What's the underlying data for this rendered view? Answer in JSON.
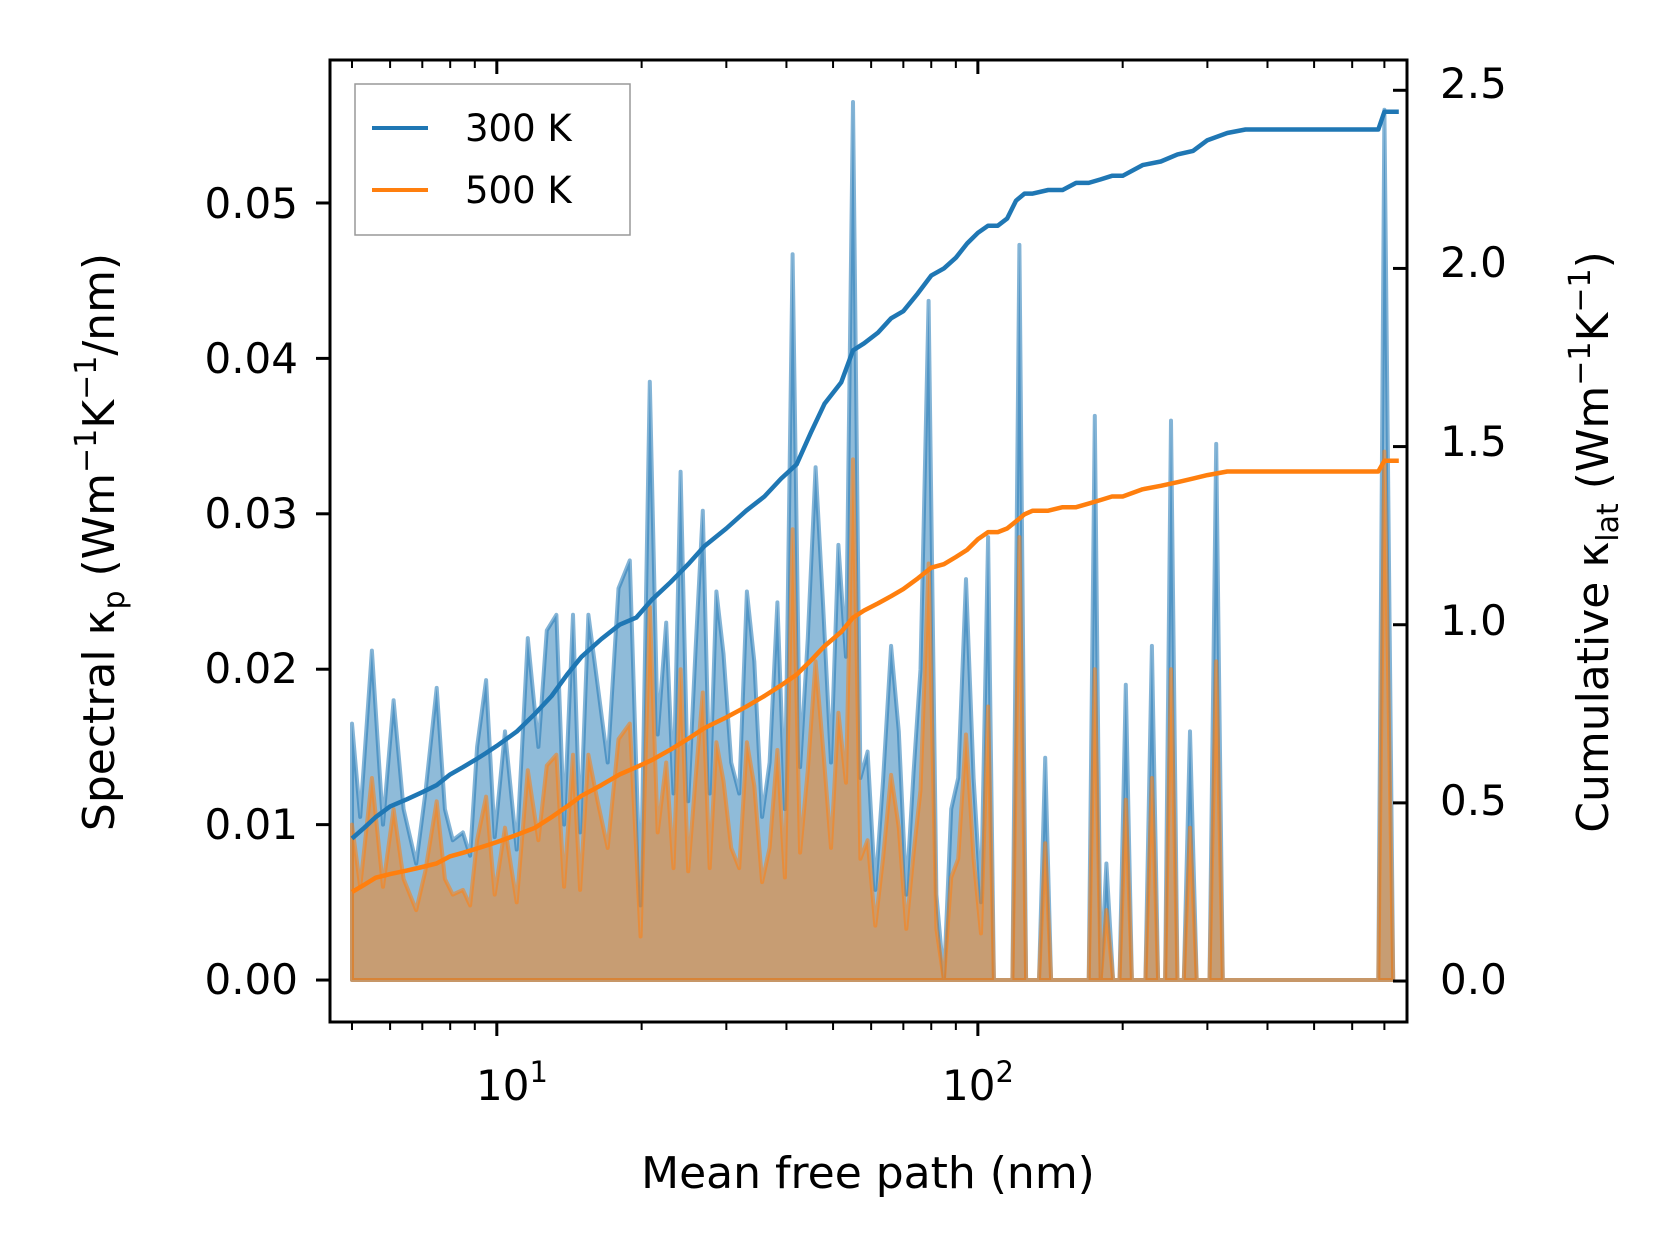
{
  "chart_data": {
    "type": "line",
    "x_scale": "log",
    "xlim": [
      4.5,
      780
    ],
    "ylim_left": [
      -0.0027,
      0.0592
    ],
    "ylim_right": [
      -0.115,
      2.585
    ],
    "xlabel": "Mean free path (nm)",
    "ylabel_left": {
      "main": "Spectral κ",
      "sub": "p",
      "unit_open": " (Wm",
      "exp1": "−1",
      "mid": "K",
      "exp2": "−1",
      "unit_close": "/nm)"
    },
    "ylabel_right": {
      "main": "Cumulative κ",
      "sub": "lat",
      "unit_open": " (Wm",
      "exp1": "−1",
      "mid": "K",
      "exp2": "−1",
      "unit_close": ")"
    },
    "x_ticks": [
      {
        "value": 10,
        "base": "10",
        "exp": "1"
      },
      {
        "value": 100,
        "base": "10",
        "exp": "2"
      }
    ],
    "y_ticks_left": [
      "0.00",
      "0.01",
      "0.02",
      "0.03",
      "0.04",
      "0.05"
    ],
    "y_ticks_right": [
      "0.0",
      "0.5",
      "1.0",
      "1.5",
      "2.0",
      "2.5"
    ],
    "legend": {
      "position": "top-left",
      "entries": [
        "300 K",
        "500 K"
      ]
    },
    "colors": {
      "s300": "#1f77b4",
      "s500": "#ff7f0e"
    },
    "series": [
      {
        "name": "300 K",
        "spectral": {
          "x": [
            5,
            5.2,
            5.5,
            5.8,
            6.1,
            6.4,
            6.8,
            7.1,
            7.5,
            7.8,
            8.1,
            8.5,
            8.8,
            9.1,
            9.5,
            9.9,
            10.4,
            11.0,
            11.6,
            12.2,
            12.7,
            13.3,
            13.8,
            14.4,
            14.9,
            15.5,
            16.2,
            17.0,
            17.9,
            18.9,
            19.9,
            20.8,
            21.6,
            22.5,
            23.3,
            24.1,
            25.0,
            25.9,
            26.8,
            27.7,
            28.6,
            29.6,
            30.7,
            31.9,
            33.1,
            34.3,
            35.6,
            36.9,
            38.3,
            39.7,
            41.2,
            42.7,
            44.3,
            46.0,
            47.7,
            49.5,
            51.3,
            53.2,
            55.0,
            57.0,
            59.0,
            61.2,
            63.5,
            66.0,
            68.5,
            71.0,
            73.5,
            76.0,
            79.0,
            82.0,
            85.0,
            88.0,
            91.0,
            94.5,
            98.0,
            101.5,
            105.0,
            108.0,
            111.0,
            114.0,
            118.0,
            122.0,
            126.0,
            130.0,
            134.0,
            138.0,
            142.0,
            146.0,
            150.0,
            155.0,
            160.0,
            165.0,
            170.0,
            175.0,
            180.0,
            185.0,
            191.0,
            197.0,
            203.0,
            209.0,
            216.0,
            223.0,
            230.0,
            237.0,
            245.0,
            252.0,
            260.0,
            268.0,
            276.0,
            285.0,
            294.0,
            303.0,
            313.0,
            323.0,
            333.0,
            400.0,
            500.0,
            600.0,
            680.0,
            700.0,
            730.0
          ],
          "values": [
            0.0165,
            0.0105,
            0.0212,
            0.01,
            0.018,
            0.011,
            0.0075,
            0.012,
            0.0188,
            0.011,
            0.009,
            0.0095,
            0.008,
            0.015,
            0.0193,
            0.0092,
            0.016,
            0.0084,
            0.022,
            0.015,
            0.0225,
            0.0235,
            0.01,
            0.0235,
            0.0095,
            0.0235,
            0.019,
            0.014,
            0.0252,
            0.027,
            0.0048,
            0.0385,
            0.0158,
            0.023,
            0.012,
            0.0327,
            0.0115,
            0.0213,
            0.0302,
            0.012,
            0.025,
            0.021,
            0.014,
            0.012,
            0.025,
            0.0205,
            0.0105,
            0.014,
            0.0243,
            0.011,
            0.0467,
            0.0137,
            0.022,
            0.033,
            0.024,
            0.014,
            0.028,
            0.0208,
            0.0565,
            0.013,
            0.0147,
            0.0058,
            0.0128,
            0.0215,
            0.016,
            0.0055,
            0.0133,
            0.02,
            0.0437,
            0.0055,
            0.0,
            0.011,
            0.013,
            0.0258,
            0.013,
            0.005,
            0.0285,
            0.0,
            0.0,
            0.0,
            0.0,
            0.0473,
            0.0,
            0.0,
            0.0,
            0.0143,
            0.0,
            0.0,
            0.0,
            0.0,
            0.0,
            0.0,
            0.0,
            0.0363,
            0.0,
            0.0075,
            0.0,
            0.0,
            0.019,
            0.0,
            0.0,
            0.0,
            0.0215,
            0.0,
            0.0,
            0.036,
            0.0,
            0.0,
            0.016,
            0.0,
            0.0,
            0.0,
            0.0345,
            0.0,
            0.0,
            0.0,
            0.0,
            0.0,
            0.0,
            0.056,
            0.0
          ]
        },
        "cumulative": {
          "x": [
            5,
            5.3,
            5.6,
            6.0,
            6.5,
            7.0,
            7.5,
            8.0,
            8.5,
            9.0,
            9.5,
            10.0,
            11.0,
            12.0,
            13.0,
            14.0,
            15.0,
            16.5,
            18.0,
            19.5,
            21.0,
            23.0,
            25.0,
            27.0,
            30.0,
            33.0,
            36.0,
            39.0,
            42.0,
            45.0,
            48.0,
            52.0,
            55.0,
            58.0,
            62.0,
            66.0,
            70.0,
            75.0,
            80.0,
            85.0,
            90.0,
            95.0,
            100.0,
            105.0,
            110.0,
            115.0,
            120.0,
            125.0,
            130.0,
            140.0,
            150.0,
            160.0,
            170.0,
            180.0,
            190.0,
            200.0,
            220.0,
            240.0,
            260.0,
            280.0,
            300.0,
            330.0,
            360.0,
            500.0,
            680.0,
            700.0,
            720.0,
            750.0
          ],
          "values": [
            0.4,
            0.43,
            0.46,
            0.49,
            0.51,
            0.53,
            0.55,
            0.58,
            0.6,
            0.62,
            0.64,
            0.66,
            0.7,
            0.75,
            0.8,
            0.86,
            0.91,
            0.96,
            1.0,
            1.02,
            1.07,
            1.12,
            1.17,
            1.22,
            1.27,
            1.32,
            1.36,
            1.41,
            1.45,
            1.54,
            1.62,
            1.68,
            1.77,
            1.79,
            1.82,
            1.86,
            1.88,
            1.93,
            1.98,
            2.0,
            2.03,
            2.07,
            2.1,
            2.12,
            2.12,
            2.14,
            2.19,
            2.21,
            2.21,
            2.22,
            2.22,
            2.24,
            2.24,
            2.25,
            2.26,
            2.26,
            2.29,
            2.3,
            2.32,
            2.33,
            2.36,
            2.38,
            2.39,
            2.39,
            2.39,
            2.44,
            2.44,
            2.44
          ]
        }
      },
      {
        "name": "500 K",
        "spectral": {
          "x": [
            5,
            5.2,
            5.5,
            5.8,
            6.1,
            6.4,
            6.8,
            7.1,
            7.5,
            7.8,
            8.1,
            8.5,
            8.8,
            9.1,
            9.5,
            9.9,
            10.4,
            11.0,
            11.6,
            12.2,
            12.7,
            13.3,
            13.8,
            14.4,
            14.9,
            15.5,
            16.2,
            17.0,
            17.9,
            18.9,
            19.9,
            20.8,
            21.6,
            22.5,
            23.3,
            24.1,
            25.0,
            25.9,
            26.8,
            27.7,
            28.6,
            29.6,
            30.7,
            31.9,
            33.1,
            34.3,
            35.6,
            36.9,
            38.3,
            39.7,
            41.2,
            42.7,
            44.3,
            46.0,
            47.7,
            49.5,
            51.3,
            53.2,
            55.0,
            57.0,
            59.0,
            61.2,
            63.5,
            66.0,
            68.5,
            71.0,
            73.5,
            76.0,
            79.0,
            82.0,
            85.0,
            88.0,
            91.0,
            94.5,
            98.0,
            101.5,
            105.0,
            108.0,
            111.0,
            114.0,
            118.0,
            122.0,
            126.0,
            130.0,
            134.0,
            138.0,
            142.0,
            146.0,
            150.0,
            155.0,
            160.0,
            165.0,
            170.0,
            175.0,
            180.0,
            185.0,
            191.0,
            197.0,
            203.0,
            209.0,
            216.0,
            223.0,
            230.0,
            237.0,
            245.0,
            252.0,
            260.0,
            268.0,
            276.0,
            285.0,
            294.0,
            303.0,
            313.0,
            323.0,
            333.0,
            400.0,
            500.0,
            600.0,
            680.0,
            700.0,
            730.0
          ],
          "values": [
            0.01,
            0.006,
            0.013,
            0.006,
            0.011,
            0.0065,
            0.0045,
            0.007,
            0.0115,
            0.0065,
            0.0055,
            0.0058,
            0.0048,
            0.009,
            0.0118,
            0.0055,
            0.0098,
            0.005,
            0.0135,
            0.009,
            0.0138,
            0.0145,
            0.006,
            0.0145,
            0.0058,
            0.0145,
            0.0115,
            0.0085,
            0.0155,
            0.0165,
            0.0028,
            0.024,
            0.0095,
            0.014,
            0.0072,
            0.02,
            0.007,
            0.013,
            0.0185,
            0.0072,
            0.0153,
            0.0128,
            0.0085,
            0.0072,
            0.0153,
            0.0125,
            0.0063,
            0.0085,
            0.0148,
            0.0066,
            0.029,
            0.0082,
            0.0135,
            0.0205,
            0.0148,
            0.0085,
            0.0172,
            0.0127,
            0.0335,
            0.0078,
            0.009,
            0.0035,
            0.0078,
            0.0132,
            0.0098,
            0.0033,
            0.0081,
            0.0122,
            0.0268,
            0.0033,
            0.0,
            0.0066,
            0.0078,
            0.0158,
            0.0078,
            0.003,
            0.0176,
            0.0,
            0.0,
            0.0,
            0.0,
            0.0285,
            0.0,
            0.0,
            0.0,
            0.0088,
            0.0,
            0.0,
            0.0,
            0.0,
            0.0,
            0.0,
            0.0,
            0.02,
            0.0,
            0.0045,
            0.0,
            0.0,
            0.0116,
            0.0,
            0.0,
            0.0,
            0.013,
            0.0,
            0.0,
            0.02,
            0.0,
            0.0,
            0.0098,
            0.0,
            0.0,
            0.0,
            0.0205,
            0.0,
            0.0,
            0.0,
            0.0,
            0.0,
            0.0,
            0.034,
            0.0
          ]
        },
        "cumulative": {
          "x": [
            5,
            5.3,
            5.6,
            6.0,
            6.5,
            7.0,
            7.5,
            8.0,
            8.5,
            9.0,
            9.5,
            10.0,
            11.0,
            12.0,
            13.0,
            14.0,
            15.0,
            16.5,
            18.0,
            19.5,
            21.0,
            23.0,
            25.0,
            27.0,
            30.0,
            33.0,
            36.0,
            39.0,
            42.0,
            45.0,
            48.0,
            52.0,
            55.0,
            58.0,
            62.0,
            66.0,
            70.0,
            75.0,
            80.0,
            85.0,
            90.0,
            95.0,
            100.0,
            105.0,
            110.0,
            115.0,
            120.0,
            125.0,
            130.0,
            140.0,
            150.0,
            160.0,
            170.0,
            180.0,
            190.0,
            200.0,
            220.0,
            240.0,
            260.0,
            280.0,
            300.0,
            330.0,
            360.0,
            500.0,
            680.0,
            700.0,
            720.0,
            750.0
          ],
          "values": [
            0.25,
            0.27,
            0.29,
            0.3,
            0.31,
            0.32,
            0.33,
            0.35,
            0.36,
            0.37,
            0.38,
            0.39,
            0.41,
            0.43,
            0.46,
            0.49,
            0.52,
            0.55,
            0.58,
            0.6,
            0.62,
            0.65,
            0.68,
            0.71,
            0.74,
            0.77,
            0.8,
            0.83,
            0.86,
            0.9,
            0.94,
            0.98,
            1.02,
            1.04,
            1.06,
            1.08,
            1.1,
            1.13,
            1.16,
            1.17,
            1.19,
            1.21,
            1.24,
            1.26,
            1.26,
            1.27,
            1.29,
            1.31,
            1.32,
            1.32,
            1.33,
            1.33,
            1.34,
            1.35,
            1.36,
            1.36,
            1.38,
            1.39,
            1.4,
            1.41,
            1.42,
            1.43,
            1.43,
            1.43,
            1.43,
            1.46,
            1.46,
            1.46
          ]
        }
      }
    ]
  }
}
